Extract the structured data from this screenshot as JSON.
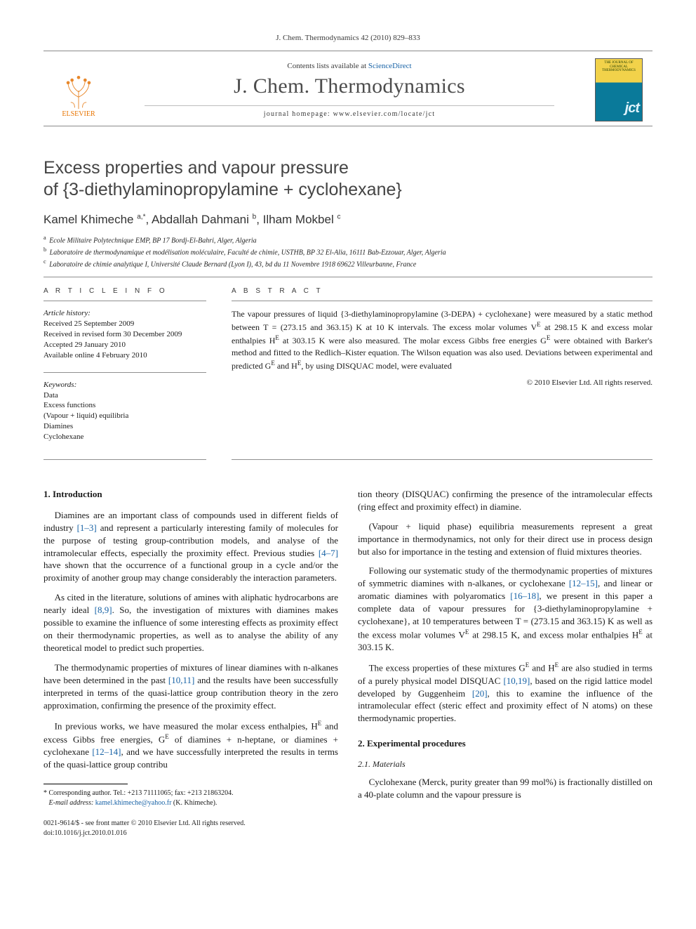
{
  "running_head": "J. Chem. Thermodynamics 42 (2010) 829–833",
  "masthead": {
    "contents_prefix": "Contents lists available at ",
    "contents_link": "ScienceDirect",
    "journal_name": "J. Chem. Thermodynamics",
    "homepage_label": "journal homepage: www.elsevier.com/locate/jct",
    "publisher_mark": "ELSEVIER",
    "cover_mark": "jct",
    "cover_title": "THE JOURNAL OF CHEMICAL THERMODYNAMICS"
  },
  "article": {
    "title_line1": "Excess properties and vapour pressure",
    "title_line2": "of {3-diethylaminopropylamine + cyclohexane}",
    "authors_html": "Kamel Khimeche <sup>a,*</sup>, Abdallah Dahmani <sup>b</sup>, Ilham Mokbel <sup>c</sup>",
    "affiliations": [
      {
        "key": "a",
        "text": "Ecole Militaire Polytechnique EMP, BP 17 Bordj-El-Bahri, Alger, Algeria"
      },
      {
        "key": "b",
        "text": "Laboratoire de thermodynamique et modélisation moléculaire, Faculté de chimie, USTHB, BP 32 El-Alia, 16111 Bab-Ezzouar, Alger, Algeria"
      },
      {
        "key": "c",
        "text": "Laboratoire de chimie analytique I, Université Claude Bernard (Lyon I), 43, bd du 11 Novembre 1918 69622 Villeurbanne, France"
      }
    ]
  },
  "info": {
    "section_label": "A R T I C L E   I N F O",
    "history_label": "Article history:",
    "history": [
      "Received 25 September 2009",
      "Received in revised form 30 December 2009",
      "Accepted 29 January 2010",
      "Available online 4 February 2010"
    ],
    "keywords_label": "Keywords:",
    "keywords": [
      "Data",
      "Excess functions",
      "(Vapour + liquid) equilibria",
      "Diamines",
      "Cyclohexane"
    ]
  },
  "abstract": {
    "section_label": "A B S T R A C T",
    "text": "The vapour pressures of liquid {3-diethylaminopropylamine (3-DEPA) + cyclohexane} were measured by a static method between T = (273.15 and 363.15) K at 10 K intervals. The excess molar volumes V<sup>E</sup> at 298.15 K and excess molar enthalpies H<sup>E</sup> at 303.15 K were also measured. The molar excess Gibbs free energies G<sup>E</sup> were obtained with Barker's method and fitted to the Redlich–Kister equation. The Wilson equation was also used. Deviations between experimental and predicted G<sup>E</sup> and H<sup>E</sup>, by using DISQUAC model, were evaluated",
    "copyright": "© 2010 Elsevier Ltd. All rights reserved."
  },
  "body": {
    "h_intro": "1. Introduction",
    "p1": "Diamines are an important class of compounds used in different fields of industry <a class='ref' href='#'>[1–3]</a> and represent a particularly interesting family of molecules for the purpose of testing group-contribution models, and analyse of the intramolecular effects, especially the proximity effect. Previous studies <a class='ref' href='#'>[4–7]</a> have shown that the occurrence of a functional group in a cycle and/or the proximity of another group may change considerably the interaction parameters.",
    "p2": "As cited in the literature, solutions of amines with aliphatic hydrocarbons are nearly ideal <a class='ref' href='#'>[8,9]</a>. So, the investigation of mixtures with diamines makes possible to examine the influence of some interesting effects as proximity effect on their thermodynamic properties, as well as to analyse the ability of any theoretical model to predict such properties.",
    "p3": "The thermodynamic properties of mixtures of linear diamines with n-alkanes have been determined in the past <a class='ref' href='#'>[10,11]</a> and the results have been successfully interpreted in terms of the quasi-lattice group contribution theory in the zero approximation, confirming the presence of the proximity effect.",
    "p4": "In previous works, we have measured the molar excess enthalpies, H<sup>E</sup> and excess Gibbs free energies, G<sup>E</sup> of diamines + n-heptane, or diamines + cyclohexane <a class='ref' href='#'>[12–14]</a>, and we have successfully interpreted the results in terms of the quasi-lattice group contribu",
    "p4b": "tion theory (DISQUAC) confirming the presence of the intramolecular effects (ring effect and proximity effect) in diamine.",
    "p5": "(Vapour + liquid phase) equilibria measurements represent a great importance in thermodynamics, not only for their direct use in process design but also for importance in the testing and extension of fluid mixtures theories.",
    "p6": "Following our systematic study of the thermodynamic properties of mixtures of symmetric diamines with n-alkanes, or cyclohexane <a class='ref' href='#'>[12–15]</a>, and linear or aromatic diamines with polyaromatics <a class='ref' href='#'>[16–18]</a>, we present in this paper a complete data of vapour pressures for {3-diethylaminopropylamine + cyclohexane}, at 10 temperatures between T = (273.15 and 363.15) K as well as the excess molar volumes V<sup>E</sup> at 298.15 K, and excess molar enthalpies H<sup>E</sup> at 303.15 K.",
    "p7": "The excess properties of these mixtures G<sup>E</sup> and H<sup>E</sup> are also studied in terms of a purely physical model DISQUAC <a class='ref' href='#'>[10,19]</a>, based on the rigid lattice model developed by Guggenheim <a class='ref' href='#'>[20]</a>, this to examine the influence of the intramolecular effect (steric effect and proximity effect of N atoms) on these thermodynamic properties.",
    "h_exp": "2. Experimental procedures",
    "h_mat": "2.1. Materials",
    "p8": "Cyclohexane (Merck, purity greater than 99 mol%) is fractionally distilled on a 40-plate column and the vapour pressure is"
  },
  "footnote": {
    "star": "* Corresponding author. Tel.: +213 71111065; fax: +213 21863204.",
    "email_label": "E-mail address:",
    "email": "kamel.khimeche@yahoo.fr",
    "email_who": "(K. Khimeche)."
  },
  "metafoot": {
    "line1": "0021-9614/$ - see front matter © 2010 Elsevier Ltd. All rights reserved.",
    "line2": "doi:10.1016/j.jct.2010.01.016"
  },
  "colors": {
    "link": "#1762a6",
    "rule": "#8f8f8f",
    "elsevier": "#e87400"
  }
}
